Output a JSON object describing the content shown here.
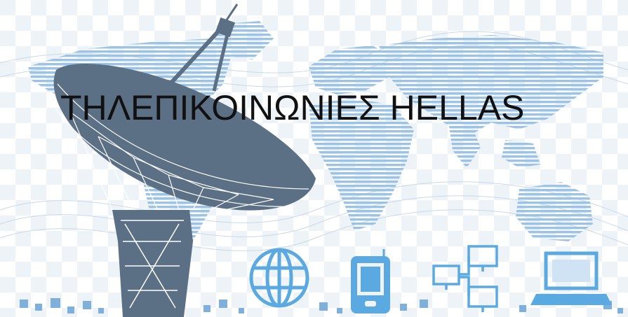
{
  "banner": {
    "title": "ΤΗΛΕΠΙΚΟΙΝΩΝΙΕΣ HELLAS",
    "colors": {
      "background": "#ffffff",
      "checker_light": "#eef3f8",
      "checker_mid": "#dde7f1",
      "map": "#9cc3e3",
      "map_dark": "#7fb0d9",
      "dish": "#5b6f85",
      "dish_line": "#ffffff",
      "icon_blue": "#5aa9e0",
      "title_text": "#111111"
    },
    "icons": [
      "satellite-dish-icon",
      "globe-icon",
      "mobile-phone-icon",
      "network-computers-icon",
      "laptop-icon"
    ]
  }
}
